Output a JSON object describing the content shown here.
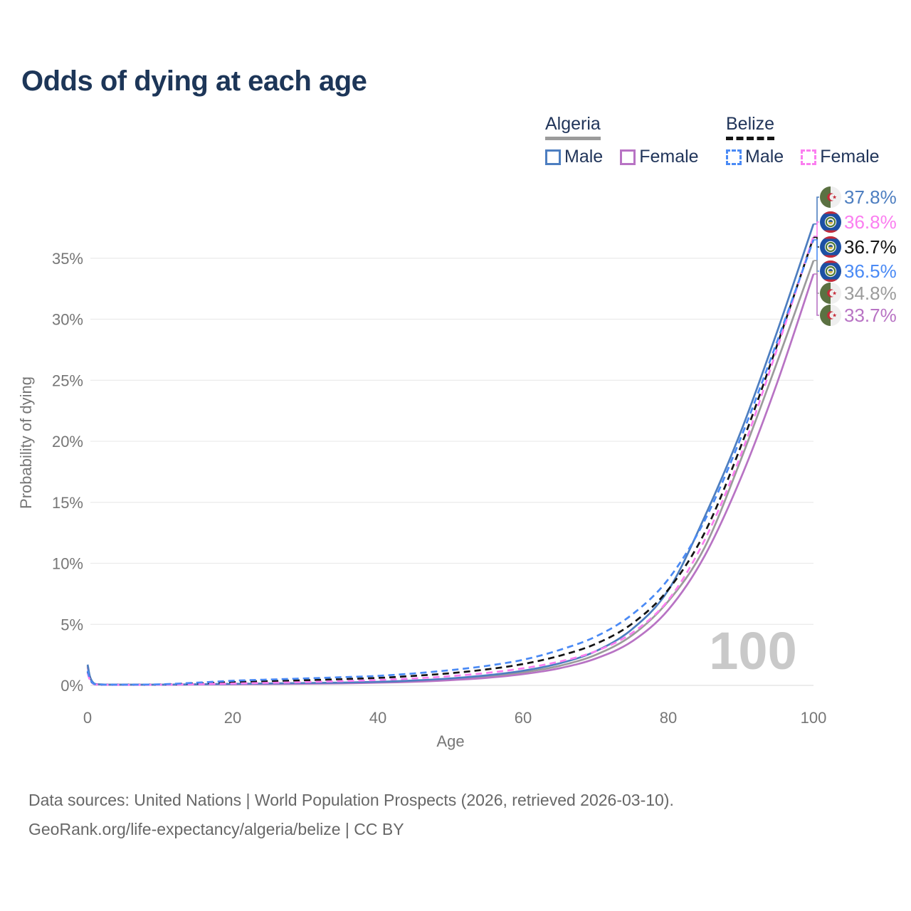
{
  "title": "Odds of dying at each age",
  "legend": {
    "groups": [
      {
        "name": "Algeria",
        "line_style": "solid",
        "underline_color": "#9b9b9b",
        "items": [
          {
            "label": "Male",
            "color": "#4d7ec0"
          },
          {
            "label": "Female",
            "color": "#b873c4"
          }
        ]
      },
      {
        "name": "Belize",
        "line_style": "dashed",
        "underline_color": "#141414",
        "items": [
          {
            "label": "Male",
            "color": "#4a8af5"
          },
          {
            "label": "Female",
            "color": "#fb7ef0"
          }
        ]
      }
    ]
  },
  "footer": {
    "line1": "Data sources: United Nations | World Population Prospects (2026, retrieved 2026-03-10).",
    "line2": "GeoRank.org/life-expectancy/algeria/belize | CC BY"
  },
  "chart_data": {
    "type": "line",
    "title": "Odds of dying at each age",
    "xlabel": "Age",
    "ylabel": "Probability of dying",
    "xlim": [
      0,
      100
    ],
    "ylim_percent": [
      0,
      40
    ],
    "grid": "horizontal",
    "legend_position": "top-right",
    "watermark": "100",
    "xticks": [
      {
        "value": 0,
        "label": "0"
      },
      {
        "value": 20,
        "label": "20"
      },
      {
        "value": 40,
        "label": "40"
      },
      {
        "value": 60,
        "label": "60"
      },
      {
        "value": 80,
        "label": "80"
      },
      {
        "value": 100,
        "label": "100"
      }
    ],
    "yticks": [
      {
        "value": 0,
        "label": "0%"
      },
      {
        "value": 5,
        "label": "5%"
      },
      {
        "value": 10,
        "label": "10%"
      },
      {
        "value": 15,
        "label": "15%"
      },
      {
        "value": 20,
        "label": "20%"
      },
      {
        "value": 25,
        "label": "25%"
      },
      {
        "value": 30,
        "label": "30%"
      },
      {
        "value": 35,
        "label": "35%"
      }
    ],
    "ages": [
      0,
      1,
      5,
      10,
      15,
      20,
      25,
      30,
      35,
      40,
      45,
      50,
      55,
      60,
      65,
      70,
      75,
      80,
      85,
      90,
      95,
      100
    ],
    "series": [
      {
        "id": "algeria-both",
        "country": "Algeria",
        "sex": "Both",
        "flag": "algeria",
        "color": "#9b9b9b",
        "dash": "solid",
        "end_label": "34.8%",
        "values_percent": [
          1.6,
          0.11,
          0.055,
          0.055,
          0.08,
          0.11,
          0.14,
          0.16,
          0.2,
          0.26,
          0.35,
          0.5,
          0.72,
          1.06,
          1.6,
          2.5,
          4.1,
          6.9,
          11.3,
          18.5,
          26.5,
          34.8
        ]
      },
      {
        "id": "algeria-female",
        "country": "Algeria",
        "sex": "Female",
        "flag": "algeria",
        "color": "#b873c4",
        "dash": "solid",
        "end_label": "33.7%",
        "values_percent": [
          1.5,
          0.1,
          0.05,
          0.05,
          0.07,
          0.09,
          0.11,
          0.14,
          0.17,
          0.22,
          0.3,
          0.43,
          0.62,
          0.92,
          1.4,
          2.2,
          3.6,
          6.2,
          10.6,
          17.0,
          24.8,
          33.7
        ]
      },
      {
        "id": "algeria-male",
        "country": "Algeria",
        "sex": "Male",
        "flag": "algeria",
        "color": "#4d7ec0",
        "dash": "solid",
        "end_label": "37.8%",
        "values_percent": [
          1.7,
          0.12,
          0.06,
          0.06,
          0.09,
          0.13,
          0.16,
          0.19,
          0.23,
          0.29,
          0.4,
          0.57,
          0.82,
          1.2,
          1.8,
          2.8,
          4.6,
          7.8,
          13.8,
          20.8,
          29.0,
          37.8
        ]
      },
      {
        "id": "belize-both",
        "country": "Belize",
        "sex": "Both",
        "flag": "belize",
        "color": "#141414",
        "dash": "dashed",
        "end_label": "36.7%",
        "values_percent": [
          1.1,
          0.09,
          0.05,
          0.07,
          0.16,
          0.27,
          0.35,
          0.42,
          0.51,
          0.61,
          0.78,
          1.0,
          1.31,
          1.75,
          2.42,
          3.4,
          5.05,
          7.85,
          12.5,
          19.6,
          27.9,
          36.7
        ]
      },
      {
        "id": "belize-female",
        "country": "Belize",
        "sex": "Female",
        "flag": "belize",
        "color": "#fb7ef0",
        "dash": "dashed",
        "end_label": "36.8%",
        "values_percent": [
          1.0,
          0.08,
          0.04,
          0.05,
          0.1,
          0.15,
          0.21,
          0.27,
          0.35,
          0.44,
          0.57,
          0.76,
          1.02,
          1.4,
          1.95,
          2.8,
          4.3,
          7.0,
          11.9,
          18.9,
          27.6,
          36.8
        ]
      },
      {
        "id": "belize-male",
        "country": "Belize",
        "sex": "Male",
        "flag": "belize",
        "color": "#4a8af5",
        "dash": "dashed",
        "end_label": "36.5%",
        "values_percent": [
          1.2,
          0.1,
          0.06,
          0.09,
          0.22,
          0.38,
          0.48,
          0.57,
          0.67,
          0.78,
          0.98,
          1.25,
          1.6,
          2.1,
          2.9,
          4.0,
          5.8,
          8.7,
          13.5,
          20.3,
          28.2,
          36.5
        ]
      }
    ]
  }
}
